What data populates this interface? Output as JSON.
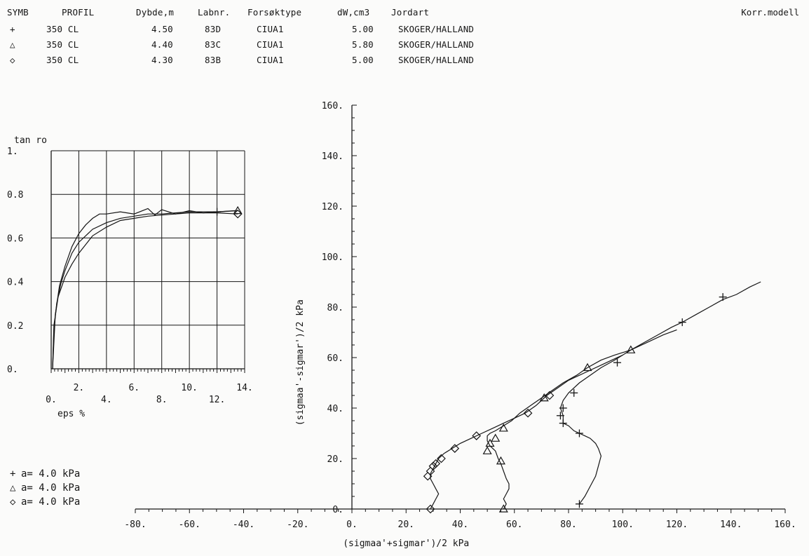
{
  "header": {
    "columns": [
      "SYMB",
      "PROFIL",
      "Dybde,m",
      "Labnr.",
      "Forsøktype",
      "dW,cm3",
      "Jordart"
    ],
    "rows": [
      {
        "symbol": "+",
        "profil": "350 CL",
        "dybde": "4.50",
        "labnr": "83D",
        "forsoktype": "CIUA1",
        "dw": "5.00",
        "jordart": "SKOGER/HALLAND"
      },
      {
        "symbol": "△",
        "profil": "350 CL",
        "dybde": "4.40",
        "labnr": "83C",
        "forsoktype": "CIUA1",
        "dw": "5.80",
        "jordart": "SKOGER/HALLAND"
      },
      {
        "symbol": "◇",
        "profil": "350 CL",
        "dybde": "4.30",
        "labnr": "83B",
        "forsoktype": "CIUA1",
        "dw": "5.00",
        "jordart": "SKOGER/HALLAND"
      }
    ],
    "model_label": "Korr.modell"
  },
  "legend_bottom": [
    {
      "symbol": "+",
      "text": "a=  4.0 kPa"
    },
    {
      "symbol": "△",
      "text": "a=  4.0 kPa"
    },
    {
      "symbol": "◇",
      "text": "a=  4.0 kPa"
    }
  ],
  "chart_data": [
    {
      "type": "line",
      "ylabel": "tan ro",
      "xlabel": "eps %",
      "xlim": [
        0,
        14
      ],
      "ylim": [
        0,
        1
      ],
      "x_ticks_upper": [
        "2.",
        "6.",
        "10.",
        "14."
      ],
      "x_ticks_lower": [
        "0.",
        "4.",
        "8.",
        "12."
      ],
      "y_ticks": [
        "0.",
        "0.2",
        "0.4",
        "0.6",
        "0.8",
        "1."
      ],
      "grid": true,
      "series": [
        {
          "symbol": "+",
          "x": [
            0.1,
            0.2,
            0.4,
            0.7,
            1.0,
            1.5,
            2.0,
            3.0,
            4.0,
            5.0,
            6.0,
            7.0,
            8.0,
            9.0,
            10.0,
            11.0,
            12.0,
            13.3
          ],
          "y": [
            0.0,
            0.18,
            0.3,
            0.39,
            0.45,
            0.53,
            0.58,
            0.64,
            0.67,
            0.69,
            0.7,
            0.71,
            0.71,
            0.715,
            0.72,
            0.72,
            0.72,
            0.725
          ],
          "markers_at": [
            12.0
          ]
        },
        {
          "symbol": "△",
          "x": [
            0.1,
            0.3,
            0.6,
            1.0,
            1.5,
            2.0,
            2.5,
            3.0,
            3.5,
            4.0,
            5.0,
            6.0,
            7.0,
            7.5,
            8.0,
            9.0,
            10.0,
            11.0,
            12.0,
            13.5
          ],
          "y": [
            0.0,
            0.25,
            0.38,
            0.47,
            0.56,
            0.62,
            0.66,
            0.69,
            0.71,
            0.71,
            0.72,
            0.71,
            0.735,
            0.705,
            0.73,
            0.71,
            0.725,
            0.715,
            0.72,
            0.725
          ],
          "markers_at": [
            13.5
          ]
        },
        {
          "symbol": "◇",
          "x": [
            0.1,
            0.2,
            0.5,
            1.0,
            1.5,
            2.0,
            2.5,
            3.0,
            4.0,
            5.0,
            6.0,
            7.0,
            8.0,
            9.0,
            10.0,
            11.0,
            12.0,
            13.5
          ],
          "y": [
            0.0,
            0.2,
            0.33,
            0.42,
            0.48,
            0.53,
            0.57,
            0.61,
            0.65,
            0.68,
            0.69,
            0.7,
            0.705,
            0.71,
            0.715,
            0.715,
            0.715,
            0.71
          ],
          "markers_at": [
            13.5
          ]
        }
      ]
    },
    {
      "type": "line",
      "ylabel": "(sigmaa'-sigmar')/2 kPa",
      "xlabel": "(sigmaa'+sigmar')/2 kPa",
      "xlim": [
        -80,
        160
      ],
      "ylim": [
        0,
        160
      ],
      "x_ticks": [
        "-80.",
        "-60.",
        "-40.",
        "-20.",
        "0.",
        "20.",
        "40.",
        "60.",
        "80.",
        "100.",
        "120.",
        "140.",
        "160."
      ],
      "y_ticks": [
        "0.",
        "20.",
        "40.",
        "60.",
        "80.",
        "100.",
        "120.",
        "140.",
        "160."
      ],
      "grid": false,
      "series": [
        {
          "symbol": "+",
          "x": [
            84,
            86,
            88,
            90,
            91,
            92,
            91,
            90,
            88,
            86,
            84,
            82,
            80,
            78,
            78,
            77,
            78,
            80,
            84,
            88,
            92,
            97,
            103,
            108,
            113,
            118,
            122,
            127,
            132,
            137,
            142,
            147,
            151
          ],
          "y": [
            2,
            5,
            9,
            13,
            17,
            21,
            24,
            26,
            28,
            29,
            30,
            31,
            33,
            34,
            37,
            40,
            43,
            46,
            50,
            53,
            56,
            59,
            63,
            66,
            69,
            72,
            74,
            77,
            80,
            83,
            85,
            88,
            90
          ],
          "markers": [
            [
              84,
              2
            ],
            [
              84,
              30
            ],
            [
              78,
              34
            ],
            [
              77,
              37
            ],
            [
              78,
              40
            ],
            [
              82,
              46
            ],
            [
              98,
              58
            ],
            [
              122,
              74
            ],
            [
              137,
              84
            ]
          ]
        },
        {
          "symbol": "△",
          "x": [
            56,
            57,
            56,
            57,
            58,
            58,
            57,
            56,
            55,
            54,
            53,
            51,
            50,
            50,
            51,
            53,
            56,
            59,
            62,
            66,
            70,
            74,
            78,
            83,
            87,
            92,
            97,
            103,
            109,
            115,
            120
          ],
          "y": [
            0,
            2,
            4,
            6,
            8,
            10,
            12,
            15,
            18,
            20,
            23,
            25,
            27,
            29,
            30,
            31,
            33,
            35,
            38,
            41,
            44,
            47,
            50,
            53,
            56,
            59,
            61,
            63,
            66,
            69,
            71
          ],
          "markers": [
            [
              56,
              0
            ],
            [
              55,
              19
            ],
            [
              50,
              23
            ],
            [
              51,
              26
            ],
            [
              53,
              28
            ],
            [
              56,
              32
            ],
            [
              71,
              44
            ],
            [
              87,
              56
            ],
            [
              103,
              63
            ]
          ]
        },
        {
          "symbol": "◇",
          "x": [
            29,
            30,
            31,
            32,
            31,
            30,
            29,
            29,
            30,
            31,
            32,
            34,
            37,
            40,
            44,
            48,
            52,
            56,
            60,
            64,
            68,
            72,
            76,
            80,
            84,
            88,
            92,
            96,
            100
          ],
          "y": [
            0,
            2,
            4,
            6,
            8,
            10,
            12,
            14,
            16,
            18,
            20,
            22,
            24,
            26,
            28,
            30,
            32,
            34,
            36,
            38,
            41,
            45,
            48,
            51,
            53,
            55,
            57,
            59,
            61
          ],
          "markers": [
            [
              29,
              0
            ],
            [
              28,
              13
            ],
            [
              29,
              15
            ],
            [
              30,
              17
            ],
            [
              31,
              18
            ],
            [
              33,
              20
            ],
            [
              38,
              24
            ],
            [
              46,
              29
            ],
            [
              65,
              38
            ],
            [
              73,
              45
            ]
          ]
        }
      ]
    }
  ]
}
